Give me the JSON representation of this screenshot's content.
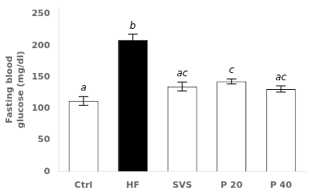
{
  "chart_data": {
    "type": "bar",
    "categories": [
      "Ctrl",
      "HF",
      "SVS",
      "P 20",
      "P 40"
    ],
    "values": [
      112,
      209,
      135,
      143,
      131
    ],
    "errors": [
      7,
      9,
      7,
      4,
      5
    ],
    "annotations": [
      "a",
      "b",
      "ac",
      "c",
      "ac"
    ],
    "colors": [
      "white",
      "black",
      "white",
      "white",
      "white"
    ],
    "ylabel": "Fasting blood\nglucose (mg/dl)",
    "ylim": [
      0,
      260
    ],
    "yticks": [
      0,
      50,
      100,
      150,
      200,
      250
    ],
    "grid": false
  }
}
